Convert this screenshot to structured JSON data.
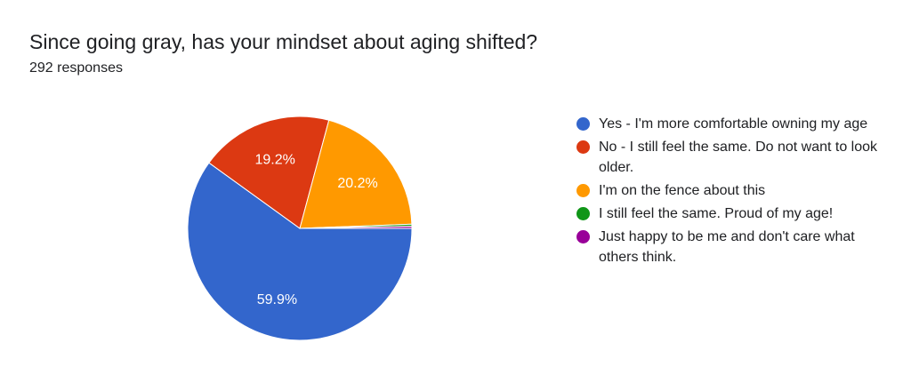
{
  "chart_data": {
    "type": "pie",
    "title": "Since going gray, has your mindset about aging shifted?",
    "subtitle": "292 responses",
    "start_angle_deg": 90,
    "series": [
      {
        "name": "Yes - I'm more comfortable owning my age",
        "value": 59.9,
        "label": "59.9%",
        "color": "#3366cc"
      },
      {
        "name": "No - I still feel the same. Do not want to look older.",
        "value": 19.2,
        "label": "19.2%",
        "color": "#dc3912"
      },
      {
        "name": "I'm on the fence about this",
        "value": 20.2,
        "label": "20.2%",
        "color": "#ff9900"
      },
      {
        "name": "I still feel the same. Proud of my age!",
        "value": 0.3,
        "label": "",
        "color": "#109618"
      },
      {
        "name": "Just happy to be me and don't care what others think.",
        "value": 0.3,
        "label": "",
        "color": "#990099"
      }
    ]
  }
}
